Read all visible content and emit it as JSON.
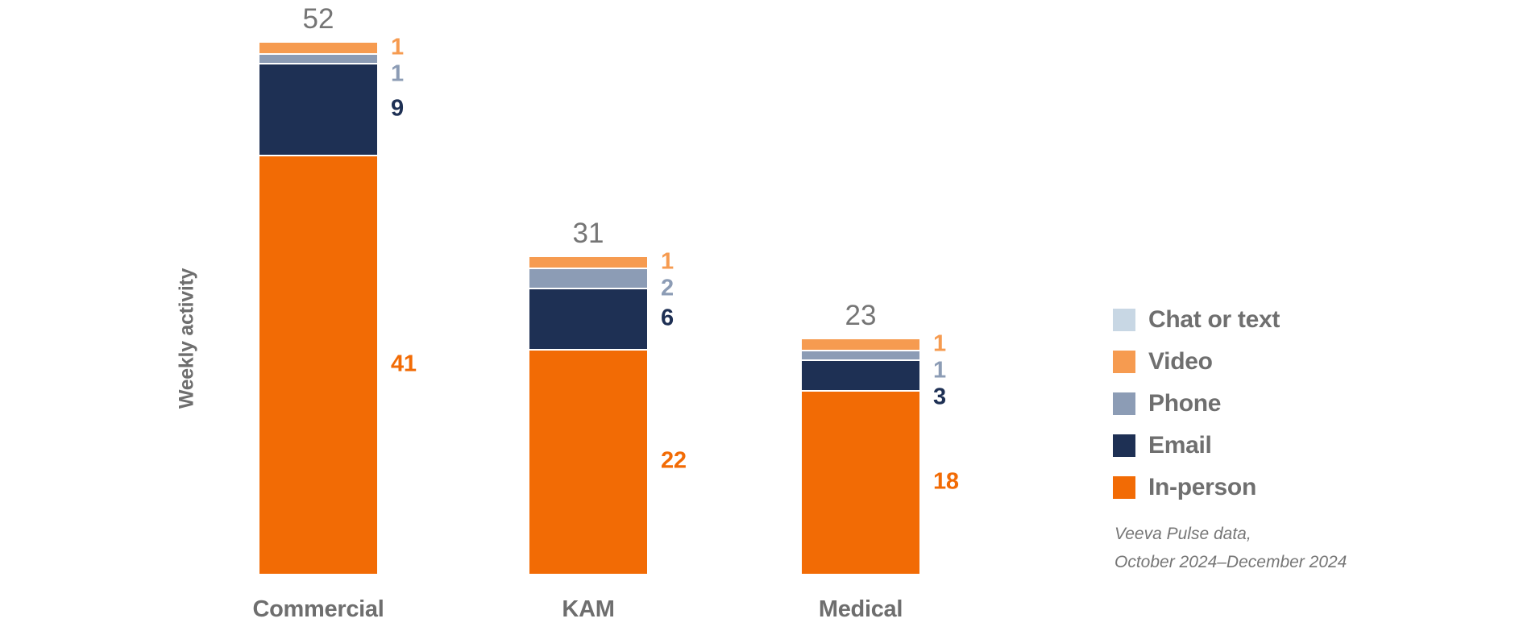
{
  "chart_data": {
    "type": "bar",
    "stacked": true,
    "title": "",
    "ylabel": "Weekly activity",
    "xlabel": "",
    "grid": false,
    "axis_lines": false,
    "legend_position": "right",
    "categories": [
      "Commercial",
      "KAM",
      "Medical"
    ],
    "totals": [
      52,
      31,
      23
    ],
    "series": [
      {
        "name": "Chat or text",
        "color": "#c8d7e4",
        "values": [
          0,
          0,
          0
        ]
      },
      {
        "name": "Video",
        "color": "#f69b50",
        "values": [
          1,
          1,
          1
        ]
      },
      {
        "name": "Phone",
        "color": "#8c9cb5",
        "values": [
          1,
          2,
          1
        ]
      },
      {
        "name": "Email",
        "color": "#1e3054",
        "values": [
          9,
          6,
          3
        ]
      },
      {
        "name": "In-person",
        "color": "#f26b05",
        "values": [
          41,
          22,
          18
        ]
      }
    ],
    "source_note": {
      "line1": "Veeva Pulse data,",
      "line2": "October 2024–December 2024"
    },
    "text_colors": {
      "total_label": "#757575",
      "axis_label": "#6e6e6e",
      "legend_label": "#6f6f6f",
      "source_note": "#767676"
    }
  }
}
